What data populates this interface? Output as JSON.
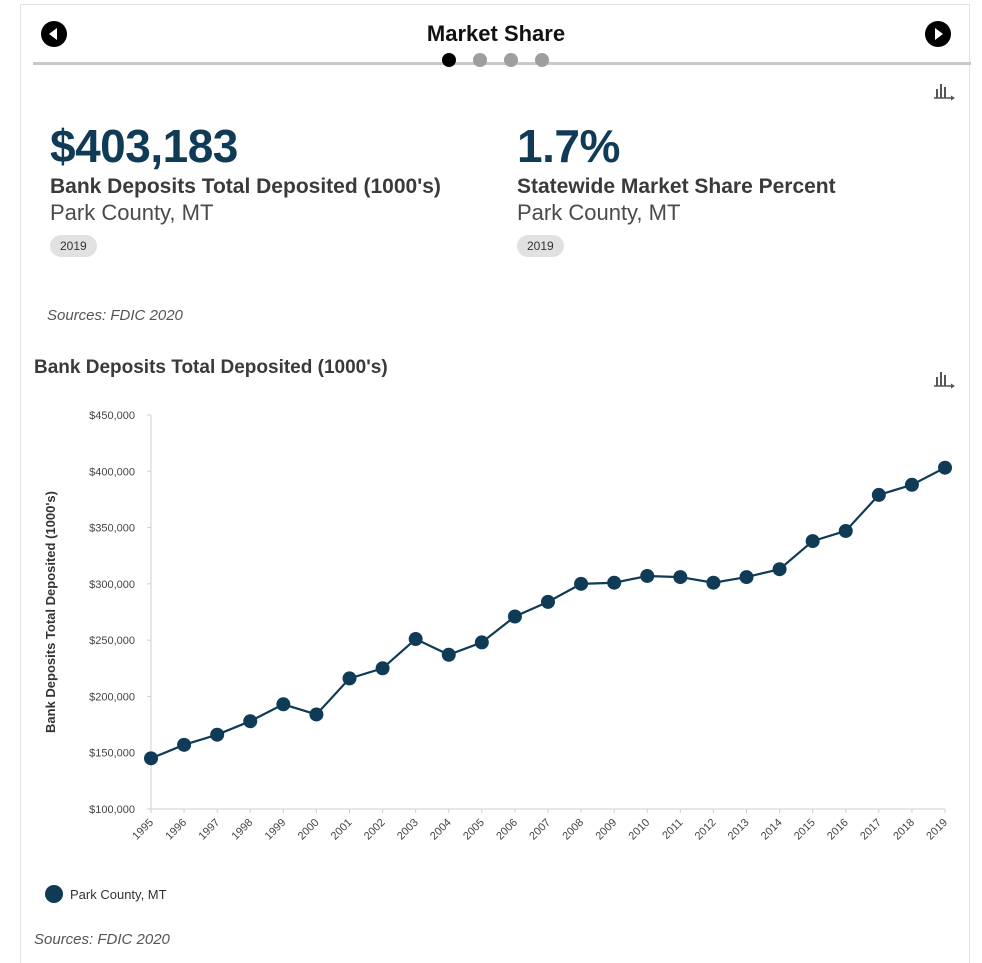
{
  "header": {
    "title": "Market Share"
  },
  "pager": {
    "count": 4,
    "active": 0
  },
  "stats": [
    {
      "value": "$403,183",
      "label": "Bank Deposits Total Deposited (1000's)",
      "geo": "Park County, MT",
      "year": "2019"
    },
    {
      "value": "1.7%",
      "label": "Statewide Market Share Percent",
      "geo": "Park County, MT",
      "year": "2019"
    }
  ],
  "sources_top": "Sources: FDIC 2020",
  "chart_section": {
    "title": "Bank Deposits Total Deposited (1000's)"
  },
  "chart_data": {
    "type": "line",
    "title": "Bank Deposits Total Deposited (1000's)",
    "xlabel": "",
    "ylabel": "Bank Deposits Total Deposited (1000's)",
    "categories": [
      "1995",
      "1996",
      "1997",
      "1998",
      "1999",
      "2000",
      "2001",
      "2002",
      "2003",
      "2004",
      "2005",
      "2006",
      "2007",
      "2008",
      "2009",
      "2010",
      "2011",
      "2012",
      "2013",
      "2014",
      "2015",
      "2016",
      "2017",
      "2018",
      "2019"
    ],
    "series": [
      {
        "name": "Park County, MT",
        "color": "#0f3b56",
        "values": [
          145000,
          157000,
          166000,
          178000,
          193000,
          184000,
          216000,
          225000,
          251000,
          237000,
          248000,
          271000,
          284000,
          300000,
          301000,
          307000,
          306000,
          301000,
          306000,
          313000,
          338000,
          347000,
          379000,
          388000,
          403183
        ]
      }
    ],
    "ylim": [
      100000,
      450000
    ],
    "yticks": [
      100000,
      150000,
      200000,
      250000,
      300000,
      350000,
      400000,
      450000
    ],
    "ytick_labels": [
      "$100,000",
      "$150,000",
      "$200,000",
      "$250,000",
      "$300,000",
      "$350,000",
      "$400,000",
      "$450,000"
    ],
    "grid": false,
    "legend_position": "bottom-left"
  },
  "sources_bottom": "Sources: FDIC 2020",
  "icons": {
    "prev": "arrow-left-circle-icon",
    "next": "arrow-right-circle-icon",
    "chart": "bar-chart-icon"
  }
}
